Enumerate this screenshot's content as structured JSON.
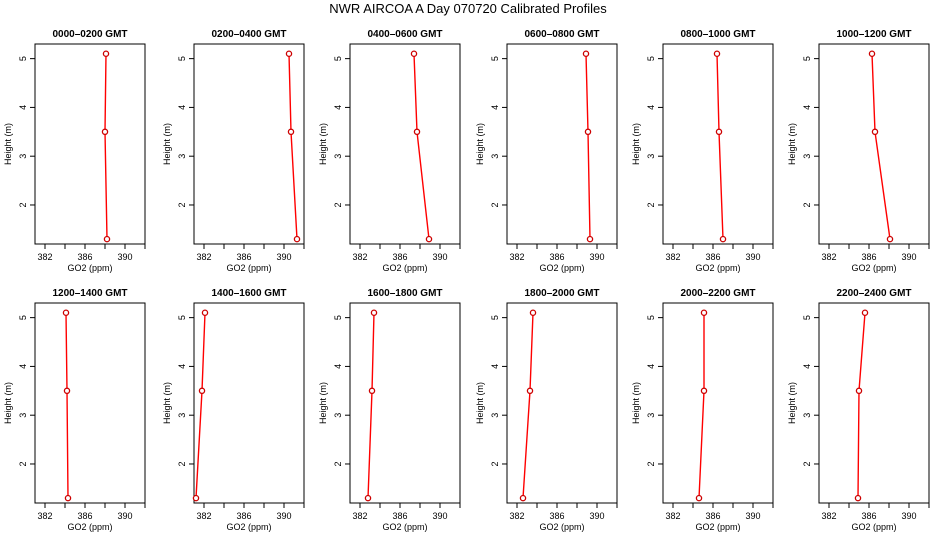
{
  "title": "NWR AIRCOA A  Day 070720  Calibrated Profiles",
  "colors": {
    "line": "#ff0000",
    "marker": "#cc0000",
    "frame": "#000000"
  },
  "chart_data": {
    "type": "line",
    "xlabel": "GO2 (ppm)",
    "ylabel": "Height (m)",
    "xlim": [
      381,
      392
    ],
    "ylim": [
      1.2,
      5.3
    ],
    "xticks": [
      382,
      386,
      390
    ],
    "yticks": [
      2,
      3,
      4,
      5
    ],
    "heights": [
      1.3,
      3.5,
      5.1
    ],
    "panels": [
      {
        "title": "0000–0200 GMT",
        "values": [
          388.2,
          388.0,
          388.1
        ]
      },
      {
        "title": "0200–0400 GMT",
        "values": [
          391.3,
          390.7,
          390.5
        ]
      },
      {
        "title": "0400–0600 GMT",
        "values": [
          388.9,
          387.7,
          387.4
        ]
      },
      {
        "title": "0600–0800 GMT",
        "values": [
          389.3,
          389.1,
          388.9
        ]
      },
      {
        "title": "0800–1000 GMT",
        "values": [
          387.0,
          386.6,
          386.4
        ]
      },
      {
        "title": "1000–1200 GMT",
        "values": [
          388.1,
          386.6,
          386.3
        ]
      },
      {
        "title": "1200–1400 GMT",
        "values": [
          384.3,
          384.2,
          384.1
        ]
      },
      {
        "title": "1400–1600 GMT",
        "values": [
          381.2,
          381.8,
          382.1
        ]
      },
      {
        "title": "1600–1800 GMT",
        "values": [
          382.8,
          383.2,
          383.4
        ]
      },
      {
        "title": "1800–2000 GMT",
        "values": [
          382.6,
          383.3,
          383.6
        ]
      },
      {
        "title": "2000–2200 GMT",
        "values": [
          384.6,
          385.1,
          385.1
        ]
      },
      {
        "title": "2200–2400 GMT",
        "values": [
          384.9,
          385.0,
          385.6
        ]
      }
    ]
  }
}
